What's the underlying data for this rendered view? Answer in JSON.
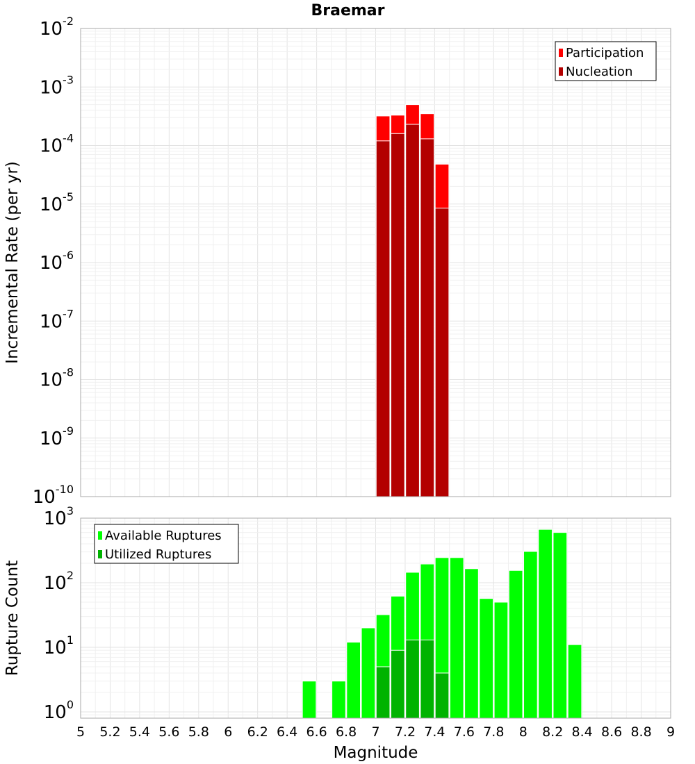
{
  "chart_data": [
    {
      "type": "bar",
      "title": "Braemar",
      "xlabel": "",
      "ylabel": "Incremental Rate (per yr)",
      "yscale": "log",
      "ylim": [
        1e-10,
        0.01
      ],
      "xlim": [
        5,
        9
      ],
      "y_ticks": [
        {
          "base": "10",
          "exp": "-10"
        },
        {
          "base": "10",
          "exp": "-9"
        },
        {
          "base": "10",
          "exp": "-8"
        },
        {
          "base": "10",
          "exp": "-7"
        },
        {
          "base": "10",
          "exp": "-6"
        },
        {
          "base": "10",
          "exp": "-5"
        },
        {
          "base": "10",
          "exp": "-4"
        },
        {
          "base": "10",
          "exp": "-3"
        },
        {
          "base": "10",
          "exp": "-2"
        }
      ],
      "legend_position": "top-right",
      "series": [
        {
          "name": "Participation",
          "color": "#ff0000",
          "x": [
            7.05,
            7.15,
            7.25,
            7.35,
            7.45
          ],
          "values": [
            0.00032,
            0.00033,
            0.0005,
            0.00035,
            4.8e-05
          ]
        },
        {
          "name": "Nucleation",
          "color": "#b30000",
          "x": [
            7.05,
            7.15,
            7.25,
            7.35,
            7.45
          ],
          "values": [
            0.00012,
            0.00016,
            0.00023,
            0.00013,
            8.5e-06
          ]
        }
      ]
    },
    {
      "type": "bar",
      "title": "",
      "xlabel": "Magnitude",
      "ylabel": "Rupture Count",
      "yscale": "log",
      "ylim": [
        0.8,
        1000
      ],
      "xlim": [
        5,
        9
      ],
      "y_ticks": [
        {
          "base": "10",
          "exp": "0",
          "value": 1
        },
        {
          "base": "10",
          "exp": "1",
          "value": 10
        },
        {
          "base": "10",
          "exp": "2",
          "value": 100
        },
        {
          "base": "10",
          "exp": "3",
          "value": 1000
        }
      ],
      "x_ticks": [
        "5",
        "5.2",
        "5.4",
        "5.6",
        "5.8",
        "6",
        "6.2",
        "6.4",
        "6.6",
        "6.8",
        "7",
        "7.2",
        "7.4",
        "7.6",
        "7.8",
        "8",
        "8.2",
        "8.4",
        "8.6",
        "8.8",
        "9"
      ],
      "legend_position": "top-left",
      "series": [
        {
          "name": "Available Ruptures",
          "color": "#00ff00",
          "x": [
            6.55,
            6.75,
            6.85,
            6.95,
            7.05,
            7.15,
            7.25,
            7.35,
            7.45,
            7.55,
            7.65,
            7.75,
            7.85,
            7.95,
            8.05,
            8.15,
            8.25,
            8.35
          ],
          "values": [
            3,
            3,
            12,
            20,
            32,
            62,
            145,
            195,
            245,
            245,
            165,
            57,
            50,
            155,
            305,
            670,
            600,
            11
          ]
        },
        {
          "name": "Utilized Ruptures",
          "color": "#00b300",
          "x": [
            7.05,
            7.15,
            7.25,
            7.35,
            7.45
          ],
          "values": [
            5,
            9,
            13,
            13,
            4
          ]
        }
      ]
    }
  ]
}
